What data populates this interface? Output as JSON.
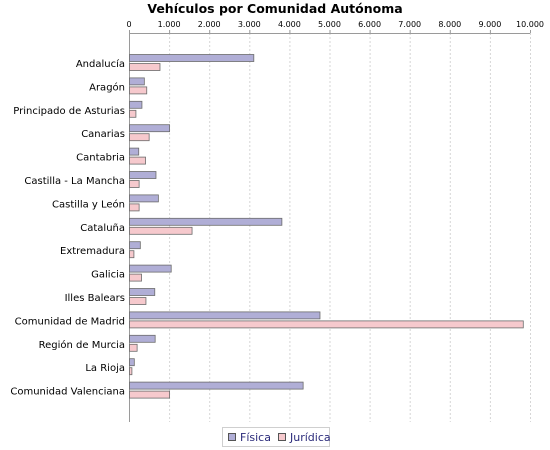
{
  "chart_data": {
    "type": "bar",
    "orientation": "horizontal",
    "title": "Vehículos por Comunidad Autónoma",
    "xlabel": "",
    "ylabel": "",
    "xlim": [
      0,
      10000
    ],
    "x_ticks": [
      0,
      1000,
      2000,
      3000,
      4000,
      5000,
      6000,
      7000,
      8000,
      9000,
      10000
    ],
    "x_tick_labels": [
      "0",
      "1.000",
      "2.000",
      "3.000",
      "4.000",
      "5.000",
      "6.000",
      "7.000",
      "8.000",
      "9.000",
      "10.000"
    ],
    "x_axis_position": "top",
    "grid": true,
    "legend_position": "bottom",
    "categories": [
      "Andalucía",
      "Aragón",
      "Principado de Asturias",
      "Canarias",
      "Cantabria",
      "Castilla - La Mancha",
      "Castilla y León",
      "Cataluña",
      "Extremadura",
      "Galicia",
      "Illes Balears",
      "Comunidad de Madrid",
      "Región de Murcia",
      "La Rioja",
      "Comunidad Valenciana"
    ],
    "series": [
      {
        "name": "Física",
        "color": "#b0aed6",
        "values": [
          3100,
          370,
          310,
          1000,
          230,
          660,
          720,
          3800,
          270,
          1040,
          630,
          4750,
          640,
          120,
          4330
        ]
      },
      {
        "name": "Jurídica",
        "color": "#f6c9cd",
        "values": [
          760,
          430,
          160,
          490,
          400,
          240,
          240,
          1560,
          110,
          300,
          410,
          9820,
          190,
          60,
          1000
        ]
      }
    ]
  }
}
